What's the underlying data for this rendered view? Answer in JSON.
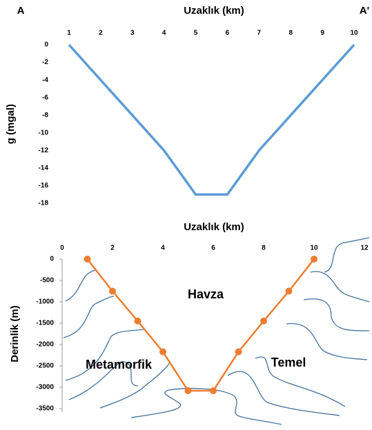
{
  "chart_data": [
    {
      "type": "line",
      "title": "Uzaklık (km)",
      "left_label": "A",
      "right_label": "A'",
      "y_label": "g (mgal)",
      "categories": [
        "1",
        "2",
        "3",
        "4",
        "5",
        "6",
        "7",
        "8",
        "9",
        "10"
      ],
      "series": [
        {
          "color": "#5b9bd5",
          "values": [
            0,
            -4,
            -8,
            -12,
            -17,
            -17,
            -12,
            -8,
            -4,
            0
          ]
        }
      ],
      "ylim": [
        -18,
        0
      ],
      "yticks": [
        0,
        -2,
        -4,
        -6,
        -8,
        -10,
        -12,
        -14,
        -16,
        -18
      ]
    },
    {
      "type": "line",
      "title": "Uzaklık (km)",
      "y_label": "Derinlik (m)",
      "x": [
        1,
        2,
        3,
        4,
        5,
        6,
        7,
        8,
        9,
        10
      ],
      "series": [
        {
          "color": "#ed7d31",
          "values": [
            0,
            -750,
            -1450,
            -2170,
            -3080,
            -3080,
            -2170,
            -1450,
            -750,
            0
          ]
        }
      ],
      "xlim": [
        0,
        12
      ],
      "xticks": [
        0,
        2,
        4,
        6,
        8,
        10,
        12
      ],
      "ylim": [
        -3500,
        0
      ],
      "yticks": [
        0,
        -500,
        -1000,
        -1500,
        -2000,
        -2500,
        -3000,
        -3500
      ],
      "annotations": [
        "Havza",
        "Metamorfik",
        "Temel"
      ]
    }
  ]
}
